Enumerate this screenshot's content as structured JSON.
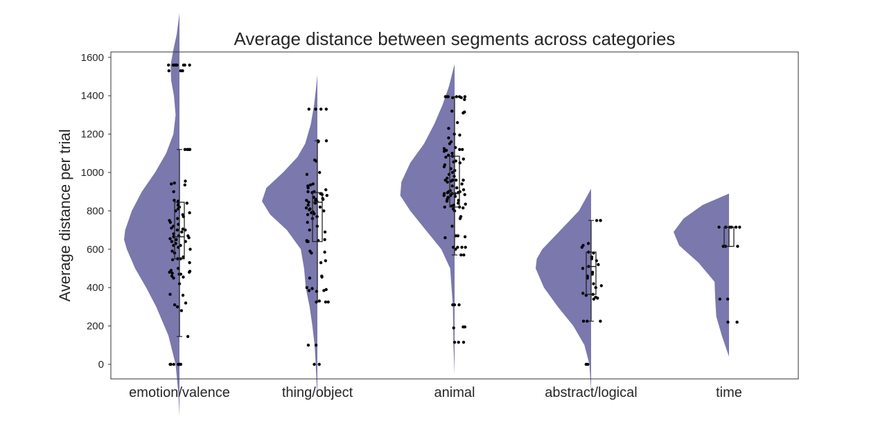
{
  "chart_data": {
    "type": "raincloud",
    "title": "Average distance between segments across categories",
    "xlabel": "",
    "ylabel": "Average distance per trial",
    "ylim": [
      -75,
      1660
    ],
    "yticks": [
      0,
      200,
      400,
      600,
      800,
      1000,
      1200,
      1400,
      1600
    ],
    "grid": false,
    "legend": "none",
    "colors": {
      "violin": "#7a78ad",
      "point": "#000000",
      "box": "#222222",
      "axis": "#333333"
    },
    "categories": [
      "emotion/valence",
      "thing/object",
      "animal",
      "abstract/logical",
      "time"
    ],
    "groups": [
      {
        "category": "emotion/valence",
        "violin_range": [
          -270,
          1830
        ],
        "violin_density": [
          [
            -270,
            0.0
          ],
          [
            -150,
            0.02
          ],
          [
            0,
            0.07
          ],
          [
            150,
            0.2
          ],
          [
            300,
            0.42
          ],
          [
            400,
            0.6
          ],
          [
            500,
            0.8
          ],
          [
            600,
            0.95
          ],
          [
            650,
            1.0
          ],
          [
            700,
            0.98
          ],
          [
            800,
            0.86
          ],
          [
            900,
            0.68
          ],
          [
            1000,
            0.44
          ],
          [
            1100,
            0.24
          ],
          [
            1200,
            0.11
          ],
          [
            1300,
            0.07
          ],
          [
            1400,
            0.1
          ],
          [
            1480,
            0.15
          ],
          [
            1560,
            0.16
          ],
          [
            1640,
            0.11
          ],
          [
            1720,
            0.05
          ],
          [
            1830,
            0.0
          ]
        ],
        "box": {
          "min": 145,
          "q1": 550,
          "median": 665,
          "q3": 845,
          "max": 1120
        },
        "points": [
          0,
          0,
          0,
          0,
          0,
          0,
          0,
          145,
          280,
          300,
          310,
          320,
          360,
          365,
          420,
          450,
          455,
          460,
          470,
          470,
          475,
          480,
          480,
          485,
          490,
          500,
          530,
          545,
          550,
          550,
          560,
          580,
          590,
          600,
          610,
          620,
          620,
          630,
          640,
          640,
          650,
          650,
          655,
          660,
          665,
          670,
          670,
          680,
          690,
          700,
          700,
          705,
          710,
          720,
          730,
          740,
          750,
          760,
          770,
          780,
          790,
          800,
          810,
          820,
          830,
          840,
          845,
          850,
          855,
          900,
          935,
          940,
          945,
          955,
          1120,
          1120,
          1120,
          1120,
          1120,
          1530,
          1530,
          1530,
          1560,
          1560,
          1560,
          1560,
          1560,
          1560,
          1560,
          1560,
          1560
        ]
      },
      {
        "category": "thing/object",
        "violin_range": [
          -185,
          1510
        ],
        "violin_density": [
          [
            -185,
            0.0
          ],
          [
            0,
            0.03
          ],
          [
            100,
            0.05
          ],
          [
            200,
            0.09
          ],
          [
            300,
            0.14
          ],
          [
            400,
            0.21
          ],
          [
            500,
            0.24
          ],
          [
            600,
            0.3
          ],
          [
            700,
            0.55
          ],
          [
            780,
            0.85
          ],
          [
            850,
            1.0
          ],
          [
            920,
            0.92
          ],
          [
            1000,
            0.62
          ],
          [
            1080,
            0.36
          ],
          [
            1150,
            0.22
          ],
          [
            1250,
            0.12
          ],
          [
            1350,
            0.06
          ],
          [
            1450,
            0.02
          ],
          [
            1510,
            0.0
          ]
        ],
        "box": {
          "min": 325,
          "q1": 640,
          "median": 845,
          "q3": 895,
          "max": 1165
        },
        "points": [
          0,
          0,
          100,
          100,
          325,
          325,
          325,
          330,
          380,
          385,
          385,
          390,
          395,
          400,
          450,
          455,
          460,
          530,
          540,
          580,
          585,
          590,
          640,
          640,
          645,
          645,
          650,
          690,
          700,
          720,
          740,
          760,
          770,
          780,
          785,
          790,
          795,
          800,
          805,
          810,
          815,
          820,
          830,
          840,
          845,
          850,
          855,
          855,
          860,
          860,
          865,
          870,
          880,
          885,
          890,
          895,
          900,
          900,
          910,
          920,
          930,
          935,
          940,
          990,
          1000,
          1060,
          1065,
          1160,
          1165,
          1165,
          1330,
          1330,
          1330,
          1330
        ]
      },
      {
        "category": "animal",
        "violin_range": [
          -55,
          1565
        ],
        "violin_density": [
          [
            -55,
            0.0
          ],
          [
            100,
            0.02
          ],
          [
            300,
            0.03
          ],
          [
            500,
            0.08
          ],
          [
            600,
            0.24
          ],
          [
            700,
            0.52
          ],
          [
            800,
            0.8
          ],
          [
            880,
            0.98
          ],
          [
            950,
            0.96
          ],
          [
            1050,
            0.8
          ],
          [
            1150,
            0.55
          ],
          [
            1250,
            0.37
          ],
          [
            1350,
            0.22
          ],
          [
            1450,
            0.1
          ],
          [
            1520,
            0.04
          ],
          [
            1565,
            0.0
          ]
        ],
        "box": {
          "min": 570,
          "q1": 820,
          "median": 890,
          "q3": 1085,
          "max": 1395
        },
        "points": [
          115,
          115,
          115,
          190,
          195,
          195,
          310,
          310,
          310,
          570,
          570,
          600,
          610,
          610,
          610,
          610,
          660,
          665,
          670,
          670,
          720,
          760,
          770,
          800,
          810,
          815,
          820,
          820,
          825,
          830,
          835,
          840,
          850,
          855,
          860,
          870,
          875,
          880,
          880,
          885,
          890,
          890,
          890,
          895,
          895,
          900,
          900,
          905,
          910,
          920,
          930,
          940,
          950,
          955,
          960,
          960,
          960,
          960,
          970,
          980,
          990,
          1000,
          1010,
          1020,
          1030,
          1040,
          1050,
          1055,
          1060,
          1070,
          1080,
          1085,
          1090,
          1100,
          1110,
          1115,
          1120,
          1120,
          1125,
          1130,
          1150,
          1160,
          1180,
          1195,
          1200,
          1230,
          1260,
          1310,
          1315,
          1320,
          1380,
          1390,
          1390,
          1395,
          1395,
          1395,
          1395,
          1395,
          1395
        ]
      },
      {
        "category": "abstract/logical",
        "violin_range": [
          -145,
          915
        ],
        "violin_density": [
          [
            -145,
            0.0
          ],
          [
            0,
            0.03
          ],
          [
            100,
            0.12
          ],
          [
            200,
            0.32
          ],
          [
            300,
            0.6
          ],
          [
            400,
            0.85
          ],
          [
            500,
            1.0
          ],
          [
            550,
            0.98
          ],
          [
            600,
            0.88
          ],
          [
            700,
            0.55
          ],
          [
            800,
            0.22
          ],
          [
            915,
            0.0
          ]
        ],
        "box": {
          "min": 225,
          "q1": 365,
          "median": 510,
          "q3": 585,
          "max": 750
        },
        "points": [
          0,
          0,
          225,
          225,
          225,
          340,
          345,
          350,
          360,
          365,
          370,
          400,
          410,
          420,
          450,
          460,
          470,
          480,
          500,
          510,
          520,
          540,
          550,
          560,
          580,
          585,
          610,
          620,
          630,
          750,
          750,
          750
        ]
      },
      {
        "category": "time",
        "violin_range": [
          40,
          890
        ],
        "violin_density": [
          [
            40,
            0.0
          ],
          [
            150,
            0.13
          ],
          [
            250,
            0.23
          ],
          [
            350,
            0.25
          ],
          [
            430,
            0.26
          ],
          [
            530,
            0.55
          ],
          [
            620,
            0.9
          ],
          [
            690,
            1.0
          ],
          [
            760,
            0.82
          ],
          [
            830,
            0.48
          ],
          [
            890,
            0.0
          ]
        ],
        "box": {
          "min": 615,
          "q1": 615,
          "median": 715,
          "q3": 715,
          "max": 715
        },
        "points": [
          220,
          220,
          340,
          340,
          615,
          615,
          615,
          615,
          715,
          715,
          715,
          715,
          715,
          715,
          715
        ]
      }
    ]
  }
}
